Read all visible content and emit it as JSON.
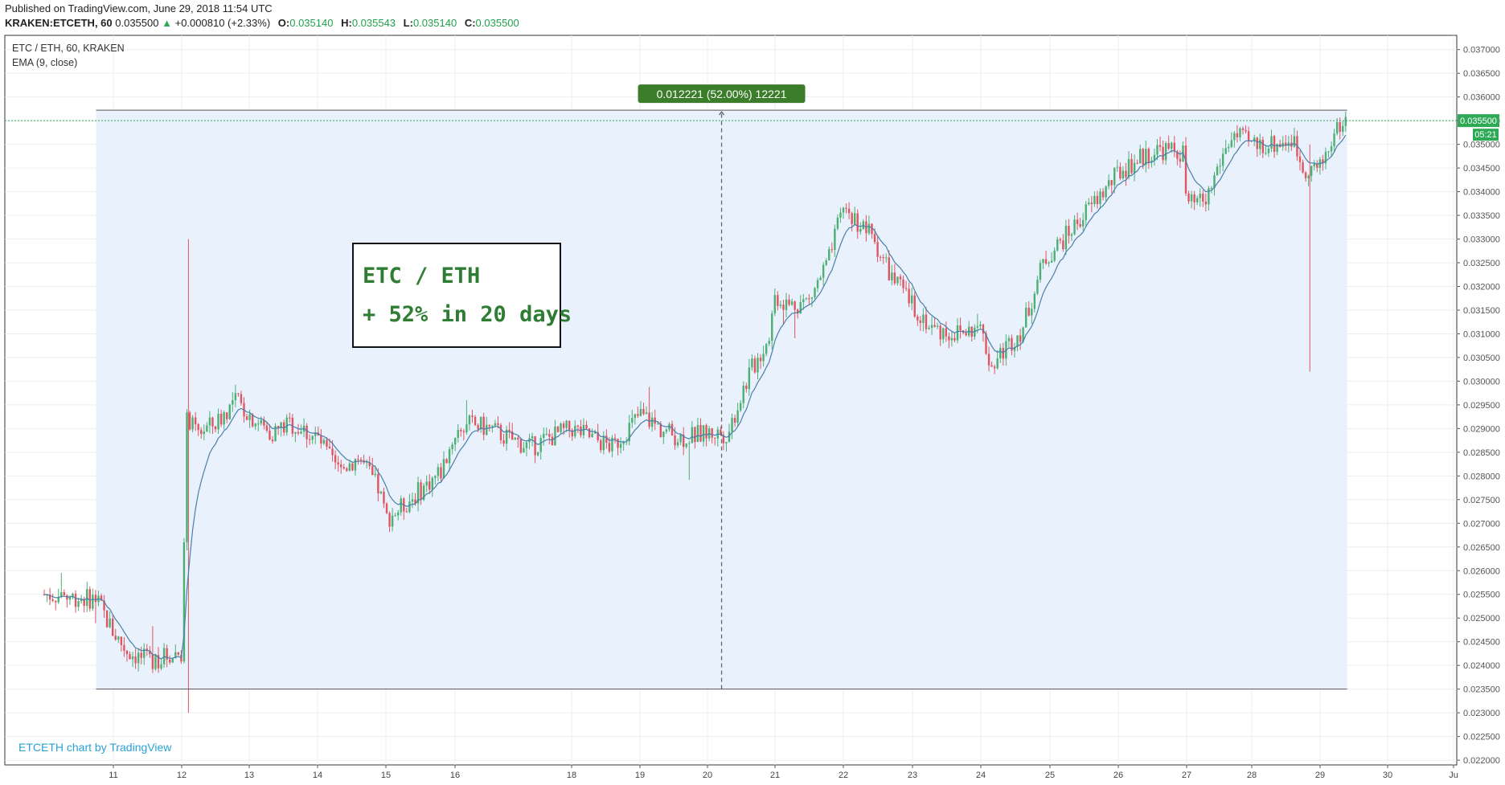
{
  "published": "Published on TradingView.com, June 29, 2018 11:54 UTC",
  "header": {
    "symbol": "KRAKEN:ETCETH, 60",
    "last": "0.035500",
    "change_arrow": "▲",
    "change": "+0.000810 (+2.33%)",
    "open_label": "O:",
    "open": "0.035140",
    "high_label": "H:",
    "high": "0.035543",
    "low_label": "L:",
    "low": "0.035140",
    "close_label": "C:",
    "close": "0.035500"
  },
  "legend": {
    "line1": "ETC / ETH, 60, KRAKEN",
    "line2": "EMA (9, close)"
  },
  "measure_label": "0.012221 (52.00%) 12221",
  "annotation": {
    "line1": "ETC / ETH",
    "line2": "+ 52% in 20 days"
  },
  "price_tag": "0.035500",
  "time_tag": "05:21",
  "watermark": "ETCETH chart by TradingView",
  "colors": {
    "up": "#4caf73",
    "down": "#e0555f",
    "ema": "#4a7fa8",
    "measure_bg": "#3b7d2a",
    "price_line": "#2eaa57",
    "range_fill": "#e9f1fc"
  },
  "chart_data": {
    "type": "candlestick",
    "title": "ETC / ETH, 60, KRAKEN",
    "indicator": "EMA (9, close)",
    "y_ticks": [
      "0.037000",
      "0.036500",
      "0.036000",
      "0.035500",
      "0.035000",
      "0.034500",
      "0.034000",
      "0.033500",
      "0.033000",
      "0.032500",
      "0.032000",
      "0.031500",
      "0.031000",
      "0.030500",
      "0.030000",
      "0.029500",
      "0.029000",
      "0.028500",
      "0.028000",
      "0.027500",
      "0.027000",
      "0.026500",
      "0.026000",
      "0.025500",
      "0.025000",
      "0.024500",
      "0.024000",
      "0.023500",
      "0.023000",
      "0.022500",
      "0.022000"
    ],
    "ylim": [
      0.0219,
      0.0373
    ],
    "x_ticks": [
      "11",
      "12",
      "13",
      "14",
      "15",
      "16",
      "18",
      "19",
      "20",
      "21",
      "22",
      "23",
      "24",
      "25",
      "26",
      "27",
      "28",
      "29",
      "30",
      "Ju"
    ],
    "close_path": {
      "x": [
        "10",
        "10.75",
        "11",
        "11.2",
        "11.5",
        "11.8",
        "12",
        "12.08",
        "12.2",
        "12.5",
        "12.8",
        "13",
        "13.3",
        "13.6",
        "14",
        "14.3",
        "14.6",
        "14.9",
        "15",
        "15.2",
        "15.5",
        "15.8",
        "16",
        "16.2",
        "16.6",
        "16.9",
        "17.3",
        "17.6",
        "18",
        "18.3",
        "18.6",
        "19",
        "19.3",
        "19.6",
        "20",
        "20.3",
        "20.6",
        "20.9",
        "21",
        "21.2",
        "21.5",
        "21.8",
        "22",
        "22.1",
        "22.4",
        "22.7",
        "23",
        "23.3",
        "23.6",
        "24",
        "24.15",
        "24.35",
        "24.6",
        "24.9",
        "25",
        "25.2",
        "25.6",
        "25.9",
        "26",
        "26.3",
        "26.6",
        "26.95",
        "27",
        "27.3",
        "27.5",
        "27.7",
        "28",
        "28.3",
        "28.6",
        "28.75",
        "29",
        "29.2",
        "29.35",
        "29.4"
      ],
      "close": [
        0.0255,
        0.0254,
        0.0247,
        0.0243,
        0.0241,
        0.0242,
        0.0243,
        0.0293,
        0.0289,
        0.0291,
        0.0296,
        0.0293,
        0.0289,
        0.0291,
        0.0288,
        0.0281,
        0.0284,
        0.0277,
        0.0271,
        0.0273,
        0.0277,
        0.0281,
        0.0289,
        0.0291,
        0.029,
        0.0288,
        0.0286,
        0.0288,
        0.029,
        0.0288,
        0.0286,
        0.0293,
        0.029,
        0.0288,
        0.0289,
        0.0289,
        0.0301,
        0.0309,
        0.0318,
        0.0316,
        0.0317,
        0.0326,
        0.0337,
        0.0335,
        0.0331,
        0.0322,
        0.0316,
        0.0311,
        0.031,
        0.0311,
        0.0303,
        0.0307,
        0.0311,
        0.0325,
        0.0327,
        0.033,
        0.0337,
        0.0342,
        0.0344,
        0.0347,
        0.0349,
        0.0348,
        0.0337,
        0.0338,
        0.0346,
        0.0352,
        0.035,
        0.035,
        0.0351,
        0.0345,
        0.0345,
        0.0352,
        0.0355,
        0.0355
      ]
    },
    "measure": {
      "from_date": "10.75",
      "to_date": "29.4",
      "low": 0.0235,
      "high": 0.035721,
      "change": "0.012221 (52.00%) 12221"
    },
    "current_price": 0.0355
  }
}
